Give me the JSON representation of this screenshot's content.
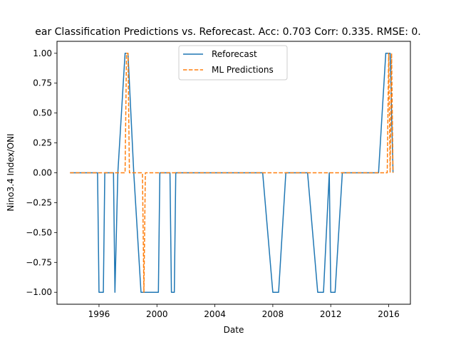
{
  "chart_data": {
    "type": "line",
    "title": "ear Classification Predictions vs. Reforecast. Acc: 0.703 Corr: 0.335. RMSE: 0.",
    "xlabel": "Date",
    "ylabel": "Nino3.4 Index/ONI",
    "xlim": [
      1993.1,
      2017.5
    ],
    "ylim": [
      -1.1,
      1.1
    ],
    "xticks": [
      1996,
      2000,
      2004,
      2008,
      2012,
      2016
    ],
    "xtick_labels": [
      "1996",
      "2000",
      "2004",
      "2008",
      "2012",
      "2016"
    ],
    "yticks": [
      -1.0,
      -0.75,
      -0.5,
      -0.25,
      0.0,
      0.25,
      0.5,
      0.75,
      1.0
    ],
    "ytick_labels": [
      "−1.00",
      "−0.75",
      "−0.50",
      "−0.25",
      "0.00",
      "0.25",
      "0.50",
      "0.75",
      "1.00"
    ],
    "grid": false,
    "legend_position": "upper center",
    "series": [
      {
        "name": "Reforecast",
        "color": "#1f77b4",
        "style": "solid",
        "x": [
          1994.0,
          1995.9,
          1996.0,
          1996.3,
          1996.4,
          1997.0,
          1997.1,
          1997.3,
          1997.8,
          1998.0,
          1998.4,
          1998.9,
          2000.1,
          2000.2,
          2000.9,
          2001.0,
          2001.2,
          2001.3,
          2007.3,
          2008.0,
          2008.4,
          2008.9,
          2010.4,
          2011.1,
          2011.5,
          2011.9,
          2012.0,
          2012.3,
          2012.8,
          2015.3,
          2015.8,
          2016.1,
          2016.3
        ],
        "y": [
          0.0,
          0.0,
          -1.0,
          -1.0,
          0.0,
          0.0,
          -1.0,
          0.0,
          1.0,
          1.0,
          0.0,
          -1.0,
          -1.0,
          0.0,
          0.0,
          -1.0,
          -1.0,
          0.0,
          0.0,
          -1.0,
          -1.0,
          0.0,
          0.0,
          -1.0,
          -1.0,
          0.0,
          -1.0,
          -1.0,
          0.0,
          0.0,
          1.0,
          1.0,
          0.0
        ]
      },
      {
        "name": "ML Predictions",
        "color": "#ff7f0e",
        "style": "dashed",
        "x": [
          1994.0,
          1997.8,
          1997.9,
          1998.0,
          1998.1,
          1999.0,
          1999.1,
          1999.2,
          2015.9,
          2016.0,
          2016.1,
          2016.2,
          2016.3
        ],
        "y": [
          0.0,
          0.0,
          1.0,
          1.0,
          0.0,
          0.0,
          -1.0,
          0.0,
          0.0,
          1.0,
          0.0,
          1.0,
          0.0
        ]
      }
    ]
  }
}
